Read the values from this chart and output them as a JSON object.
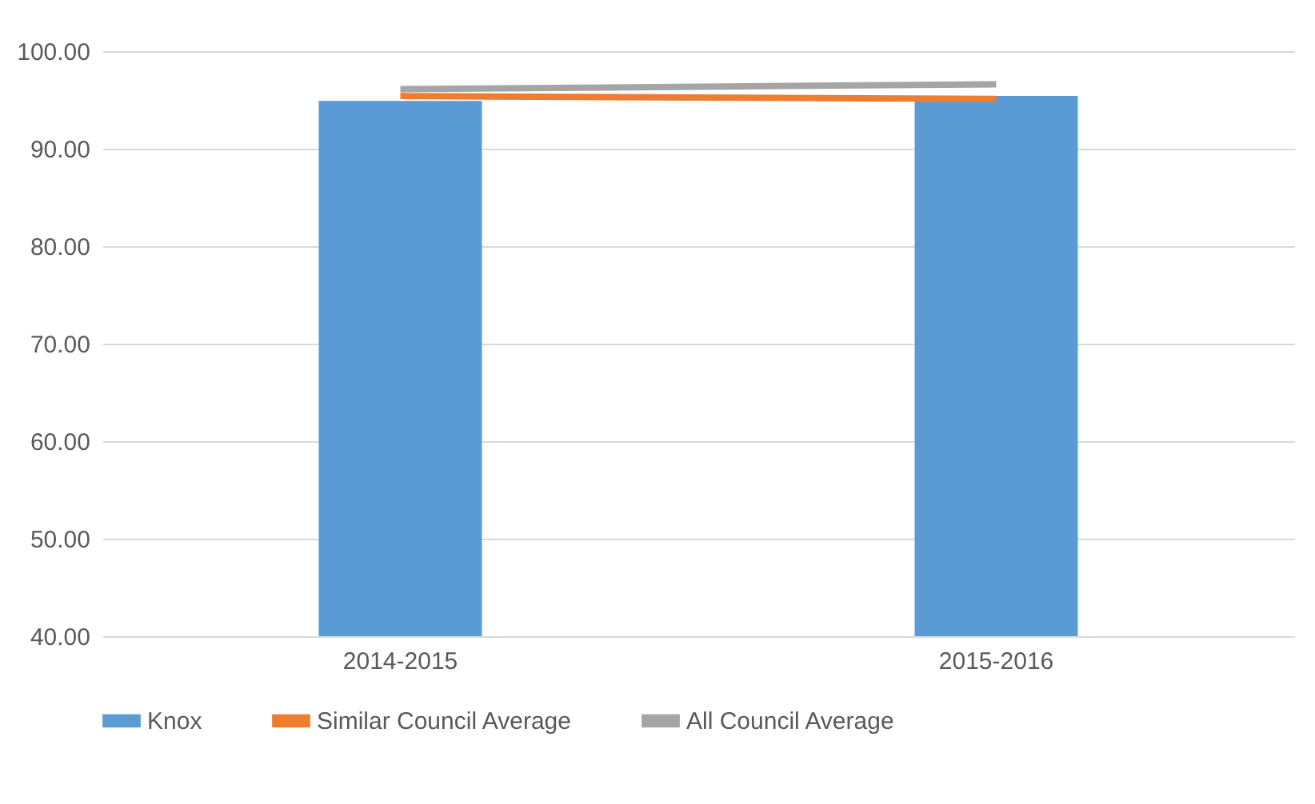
{
  "chart_data": {
    "type": "bar",
    "categories": [
      "2014-2015",
      "2015-2016"
    ],
    "series": [
      {
        "name": "Knox",
        "color": "#5b9bd5",
        "values": [
          94.9,
          95.4
        ]
      },
      {
        "name": "Similar Council Average",
        "type": "line",
        "color": "#ed7d31",
        "values": [
          95.4,
          95.1
        ]
      },
      {
        "name": "All Council Average",
        "type": "line",
        "color": "#a5a5a5",
        "values": [
          96.1,
          96.6
        ]
      }
    ],
    "ylim": [
      40,
      100
    ],
    "yticks": [
      {
        "value": 40,
        "label": "40.00"
      },
      {
        "value": 50,
        "label": "50.00"
      },
      {
        "value": 60,
        "label": "60.00"
      },
      {
        "value": 70,
        "label": "70.00"
      },
      {
        "value": 80,
        "label": "80.00"
      },
      {
        "value": 90,
        "label": "90.00"
      },
      {
        "value": 100,
        "label": "100.00"
      }
    ],
    "grid": "y",
    "legend": "bottom",
    "marker": "none",
    "line_style": "solid"
  }
}
